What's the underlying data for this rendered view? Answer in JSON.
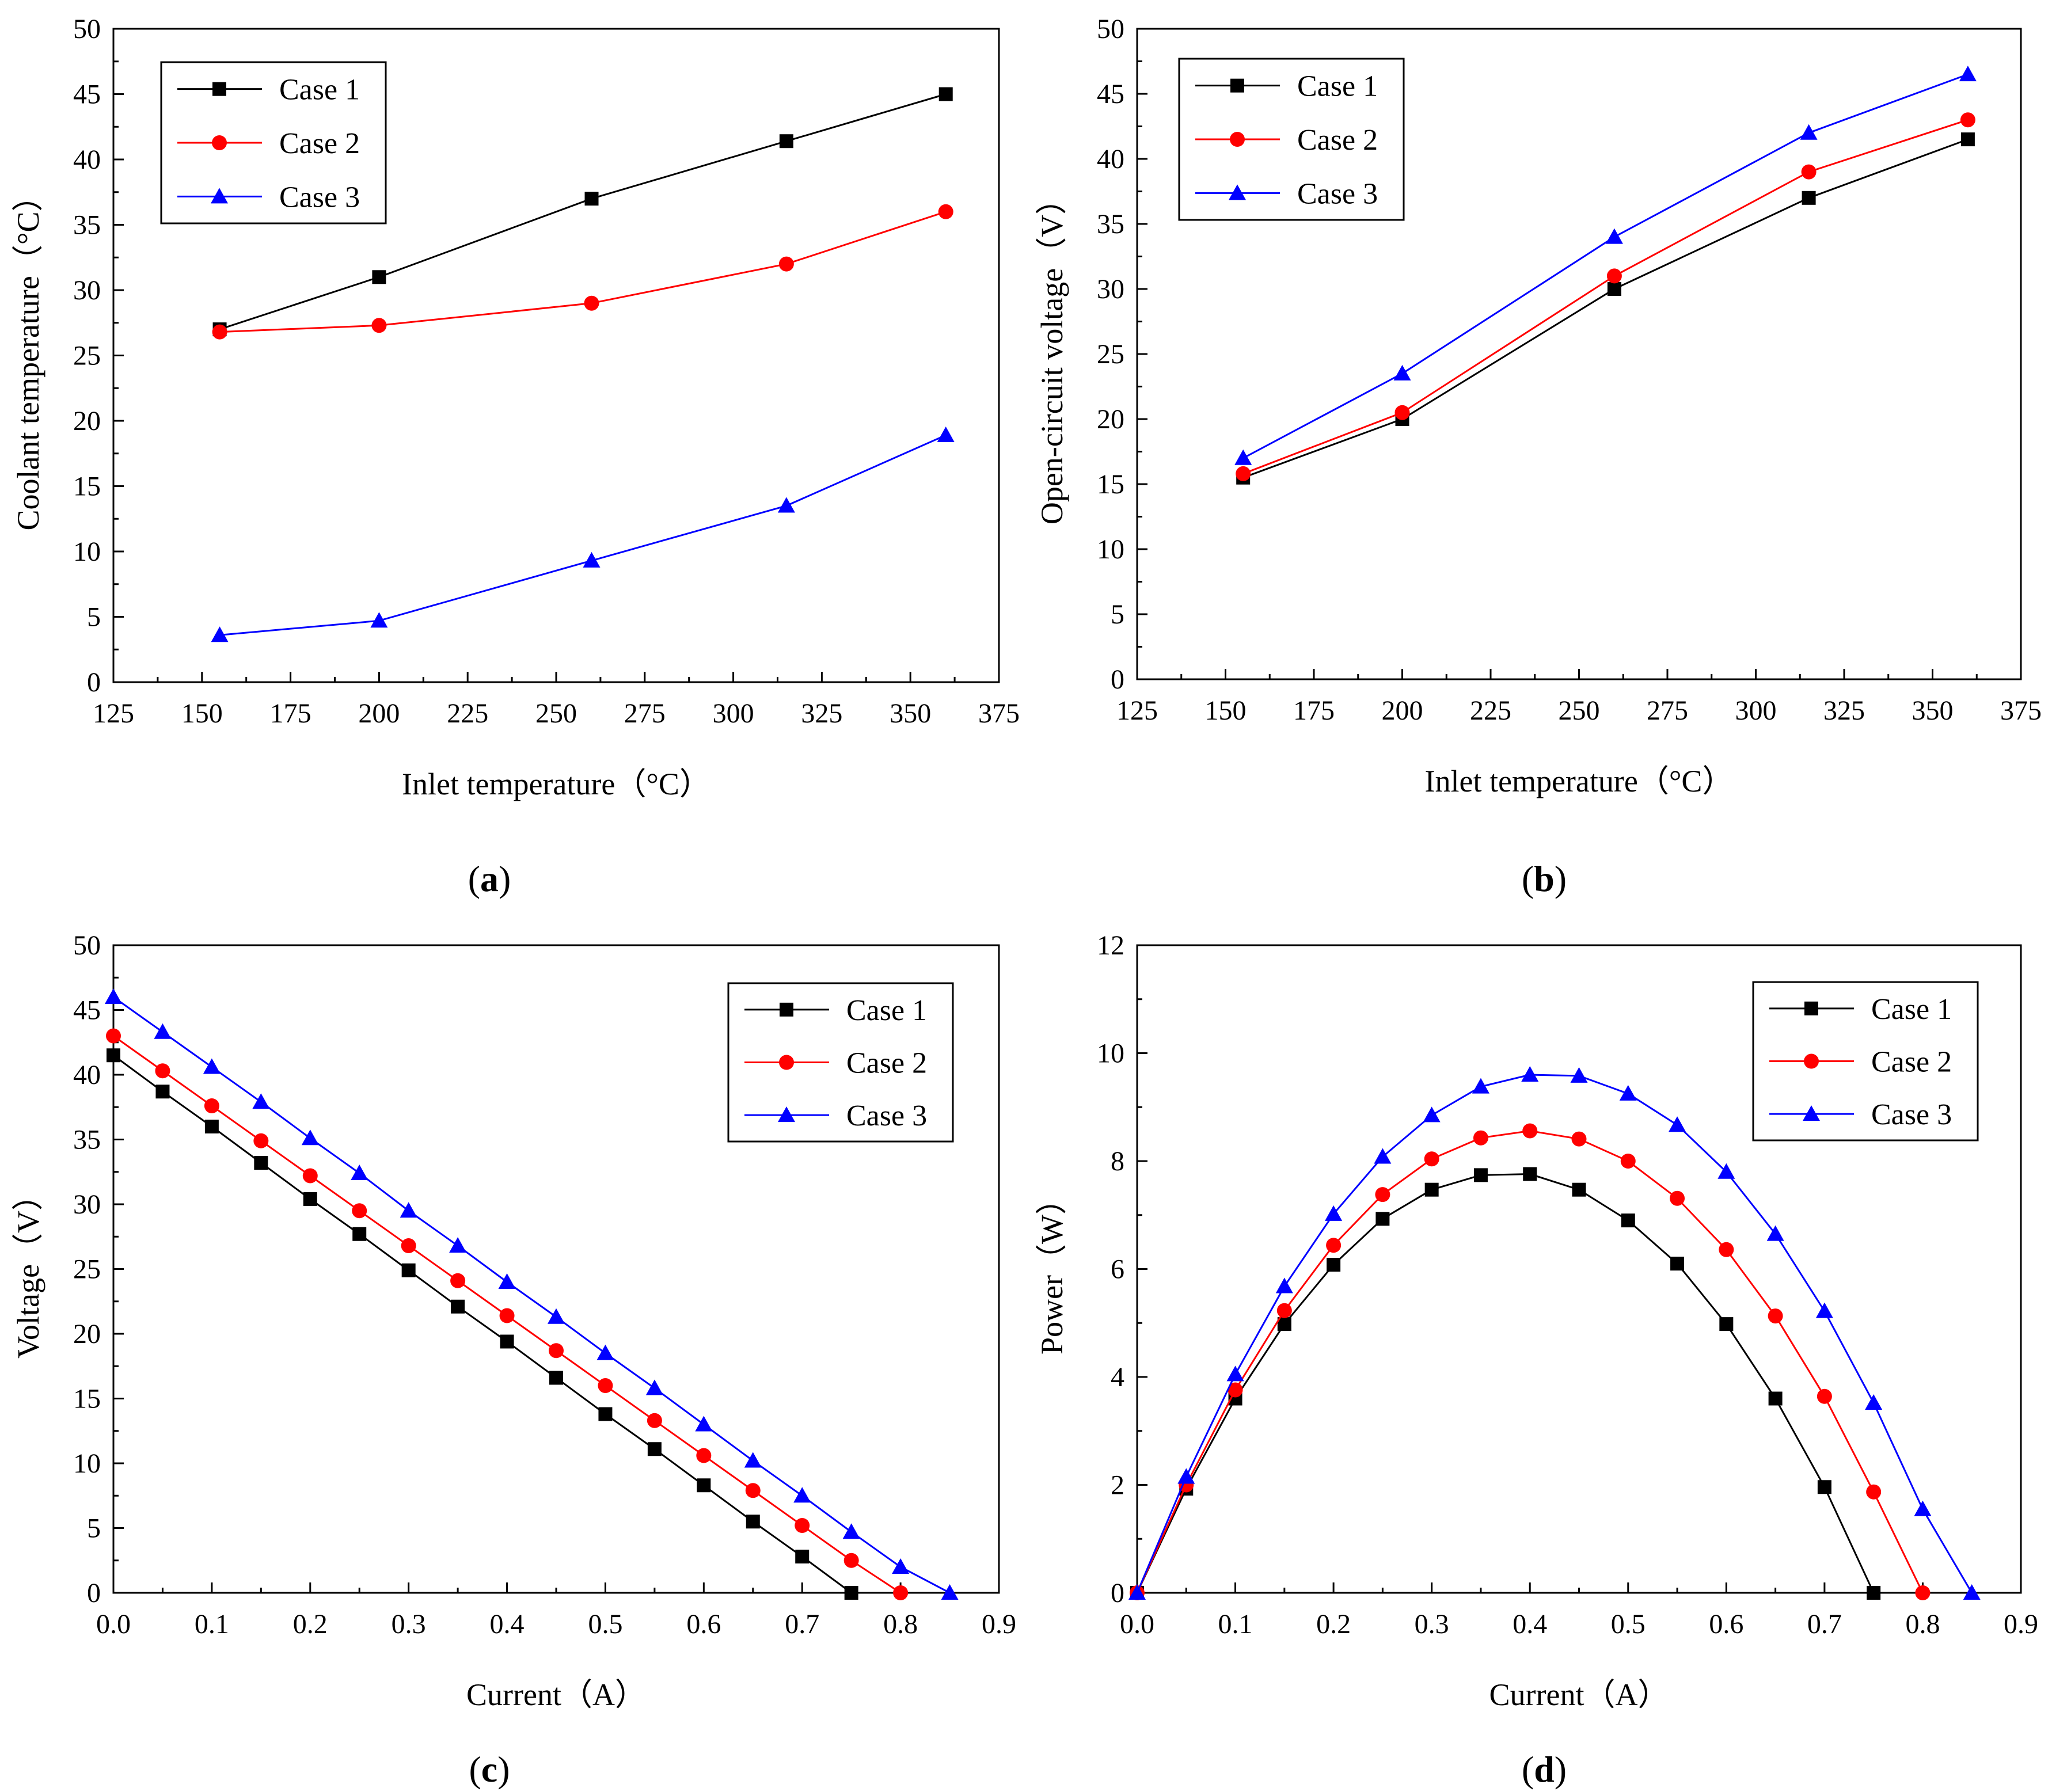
{
  "colors": {
    "case1": "#000000",
    "case2": "#ff0000",
    "case3": "#0000ff",
    "axis": "#000000",
    "background": "#ffffff"
  },
  "chart_data": [
    {
      "panel": "a",
      "type": "line",
      "caption": "(a)",
      "caption_letter": "a",
      "xlabel": "Inlet temperature（°C）",
      "ylabel": "Coolant temperature（°C）",
      "xlim": [
        125,
        375
      ],
      "ylim": [
        0,
        50
      ],
      "xticks": [
        125,
        150,
        175,
        200,
        225,
        250,
        275,
        300,
        325,
        350,
        375
      ],
      "yticks": [
        0,
        5,
        10,
        15,
        20,
        25,
        30,
        35,
        40,
        45,
        50
      ],
      "xtick_labels": [
        "125",
        "150",
        "175",
        "200",
        "225",
        "250",
        "275",
        "300",
        "325",
        "350",
        "375"
      ],
      "ytick_labels": [
        "0",
        "5",
        "10",
        "15",
        "20",
        "25",
        "30",
        "35",
        "40",
        "45",
        "50"
      ],
      "grid": false,
      "legend_position": "top-left",
      "series": [
        {
          "name": "Case 1",
          "marker": "square",
          "color": "#000000",
          "x": [
            155,
            200,
            260,
            315,
            360
          ],
          "y": [
            27.0,
            31.0,
            37.0,
            41.4,
            45.0
          ]
        },
        {
          "name": "Case 2",
          "marker": "circle",
          "color": "#ff0000",
          "x": [
            155,
            200,
            260,
            315,
            360
          ],
          "y": [
            26.8,
            27.3,
            29.0,
            32.0,
            36.0
          ]
        },
        {
          "name": "Case 3",
          "marker": "triangle",
          "color": "#0000ff",
          "x": [
            155,
            200,
            260,
            315,
            360
          ],
          "y": [
            3.6,
            4.7,
            9.3,
            13.5,
            18.9
          ]
        }
      ]
    },
    {
      "panel": "b",
      "type": "line",
      "caption": "(b)",
      "caption_letter": "b",
      "xlabel": "Inlet temperature（°C）",
      "ylabel": "Open-circuit voltage（V）",
      "xlim": [
        125,
        375
      ],
      "ylim": [
        0,
        50
      ],
      "xticks": [
        125,
        150,
        175,
        200,
        225,
        250,
        275,
        300,
        325,
        350,
        375
      ],
      "yticks": [
        0,
        5,
        10,
        15,
        20,
        25,
        30,
        35,
        40,
        45,
        50
      ],
      "xtick_labels": [
        "125",
        "150",
        "175",
        "200",
        "225",
        "250",
        "275",
        "300",
        "325",
        "350",
        "375"
      ],
      "ytick_labels": [
        "0",
        "5",
        "10",
        "15",
        "20",
        "25",
        "30",
        "35",
        "40",
        "45",
        "50"
      ],
      "grid": false,
      "legend_position": "top-left",
      "series": [
        {
          "name": "Case 1",
          "marker": "square",
          "color": "#000000",
          "x": [
            155,
            200,
            260,
            315,
            360
          ],
          "y": [
            15.5,
            20.0,
            30.0,
            37.0,
            41.5
          ]
        },
        {
          "name": "Case 2",
          "marker": "circle",
          "color": "#ff0000",
          "x": [
            155,
            200,
            260,
            315,
            360
          ],
          "y": [
            15.8,
            20.5,
            31.0,
            39.0,
            43.0
          ]
        },
        {
          "name": "Case 3",
          "marker": "triangle",
          "color": "#0000ff",
          "x": [
            155,
            200,
            260,
            315,
            360
          ],
          "y": [
            17.0,
            23.5,
            34.0,
            42.0,
            46.5
          ]
        }
      ]
    },
    {
      "panel": "c",
      "type": "line",
      "caption": "(c)",
      "caption_letter": "c",
      "xlabel": "Current（A）",
      "ylabel": "Voltage（V）",
      "xlim": [
        0,
        0.9
      ],
      "ylim": [
        0,
        50
      ],
      "xticks": [
        0,
        0.1,
        0.2,
        0.3,
        0.4,
        0.5,
        0.6,
        0.7,
        0.8,
        0.9
      ],
      "yticks": [
        0,
        5,
        10,
        15,
        20,
        25,
        30,
        35,
        40,
        45,
        50
      ],
      "xtick_labels": [
        "0.0",
        "0.1",
        "0.2",
        "0.3",
        "0.4",
        "0.5",
        "0.6",
        "0.7",
        "0.8",
        "0.9"
      ],
      "ytick_labels": [
        "0",
        "5",
        "10",
        "15",
        "20",
        "25",
        "30",
        "35",
        "40",
        "45",
        "50"
      ],
      "grid": false,
      "legend_position": "top-right",
      "series": [
        {
          "name": "Case 1",
          "marker": "square",
          "color": "#000000",
          "x": [
            0,
            0.05,
            0.1,
            0.15,
            0.2,
            0.25,
            0.3,
            0.35,
            0.4,
            0.45,
            0.5,
            0.55,
            0.6,
            0.65,
            0.7,
            0.75
          ],
          "y": [
            41.5,
            38.7,
            36.0,
            33.2,
            30.4,
            27.7,
            24.9,
            22.1,
            19.4,
            16.6,
            13.8,
            11.1,
            8.3,
            5.5,
            2.8,
            0
          ]
        },
        {
          "name": "Case 2",
          "marker": "circle",
          "color": "#ff0000",
          "x": [
            0,
            0.05,
            0.1,
            0.15,
            0.2,
            0.25,
            0.3,
            0.35,
            0.4,
            0.45,
            0.5,
            0.55,
            0.6,
            0.65,
            0.7,
            0.75,
            0.8
          ],
          "y": [
            43.0,
            40.3,
            37.6,
            34.9,
            32.2,
            29.5,
            26.8,
            24.1,
            21.4,
            18.7,
            16.0,
            13.3,
            10.6,
            7.9,
            5.2,
            2.5,
            0
          ]
        },
        {
          "name": "Case 3",
          "marker": "triangle",
          "color": "#0000ff",
          "x": [
            0,
            0.05,
            0.1,
            0.15,
            0.2,
            0.25,
            0.3,
            0.35,
            0.4,
            0.45,
            0.5,
            0.55,
            0.6,
            0.65,
            0.7,
            0.75,
            0.8,
            0.85
          ],
          "y": [
            46.0,
            43.3,
            40.6,
            37.9,
            35.1,
            32.4,
            29.5,
            26.8,
            24.0,
            21.3,
            18.5,
            15.8,
            13.0,
            10.2,
            7.5,
            4.7,
            2.0,
            0
          ]
        }
      ]
    },
    {
      "panel": "d",
      "type": "line",
      "caption": "(d)",
      "caption_letter": "d",
      "xlabel": "Current（A）",
      "ylabel": "Power（W）",
      "xlim": [
        0,
        0.9
      ],
      "ylim": [
        0,
        12
      ],
      "xticks": [
        0,
        0.1,
        0.2,
        0.3,
        0.4,
        0.5,
        0.6,
        0.7,
        0.8,
        0.9
      ],
      "yticks": [
        0,
        2,
        4,
        6,
        8,
        10,
        12
      ],
      "xtick_labels": [
        "0.0",
        "0.1",
        "0.2",
        "0.3",
        "0.4",
        "0.5",
        "0.6",
        "0.7",
        "0.8",
        "0.9"
      ],
      "ytick_labels": [
        "0",
        "2",
        "4",
        "6",
        "8",
        "10",
        "12"
      ],
      "grid": false,
      "legend_position": "top-right",
      "series": [
        {
          "name": "Case 1",
          "marker": "square",
          "color": "#000000",
          "x": [
            0,
            0.05,
            0.1,
            0.15,
            0.2,
            0.25,
            0.3,
            0.35,
            0.4,
            0.45,
            0.5,
            0.55,
            0.6,
            0.65,
            0.7,
            0.75
          ],
          "y": [
            0,
            1.93,
            3.6,
            4.98,
            6.08,
            6.93,
            7.47,
            7.74,
            7.76,
            7.47,
            6.9,
            6.1,
            4.98,
            3.6,
            1.96,
            0
          ]
        },
        {
          "name": "Case 2",
          "marker": "circle",
          "color": "#ff0000",
          "x": [
            0,
            0.05,
            0.1,
            0.15,
            0.2,
            0.25,
            0.3,
            0.35,
            0.4,
            0.45,
            0.5,
            0.55,
            0.6,
            0.65,
            0.7,
            0.75,
            0.8
          ],
          "y": [
            0,
            2.0,
            3.76,
            5.23,
            6.44,
            7.38,
            8.04,
            8.43,
            8.56,
            8.41,
            8.0,
            7.31,
            6.36,
            5.13,
            3.64,
            1.87,
            0
          ]
        },
        {
          "name": "Case 3",
          "marker": "triangle",
          "color": "#0000ff",
          "x": [
            0,
            0.05,
            0.1,
            0.15,
            0.2,
            0.25,
            0.3,
            0.35,
            0.4,
            0.45,
            0.5,
            0.55,
            0.6,
            0.65,
            0.7,
            0.75,
            0.8,
            0.85
          ],
          "y": [
            0,
            2.15,
            4.05,
            5.68,
            7.02,
            8.08,
            8.85,
            9.38,
            9.6,
            9.58,
            9.25,
            8.67,
            7.8,
            6.65,
            5.22,
            3.52,
            1.55,
            0
          ]
        }
      ]
    }
  ]
}
